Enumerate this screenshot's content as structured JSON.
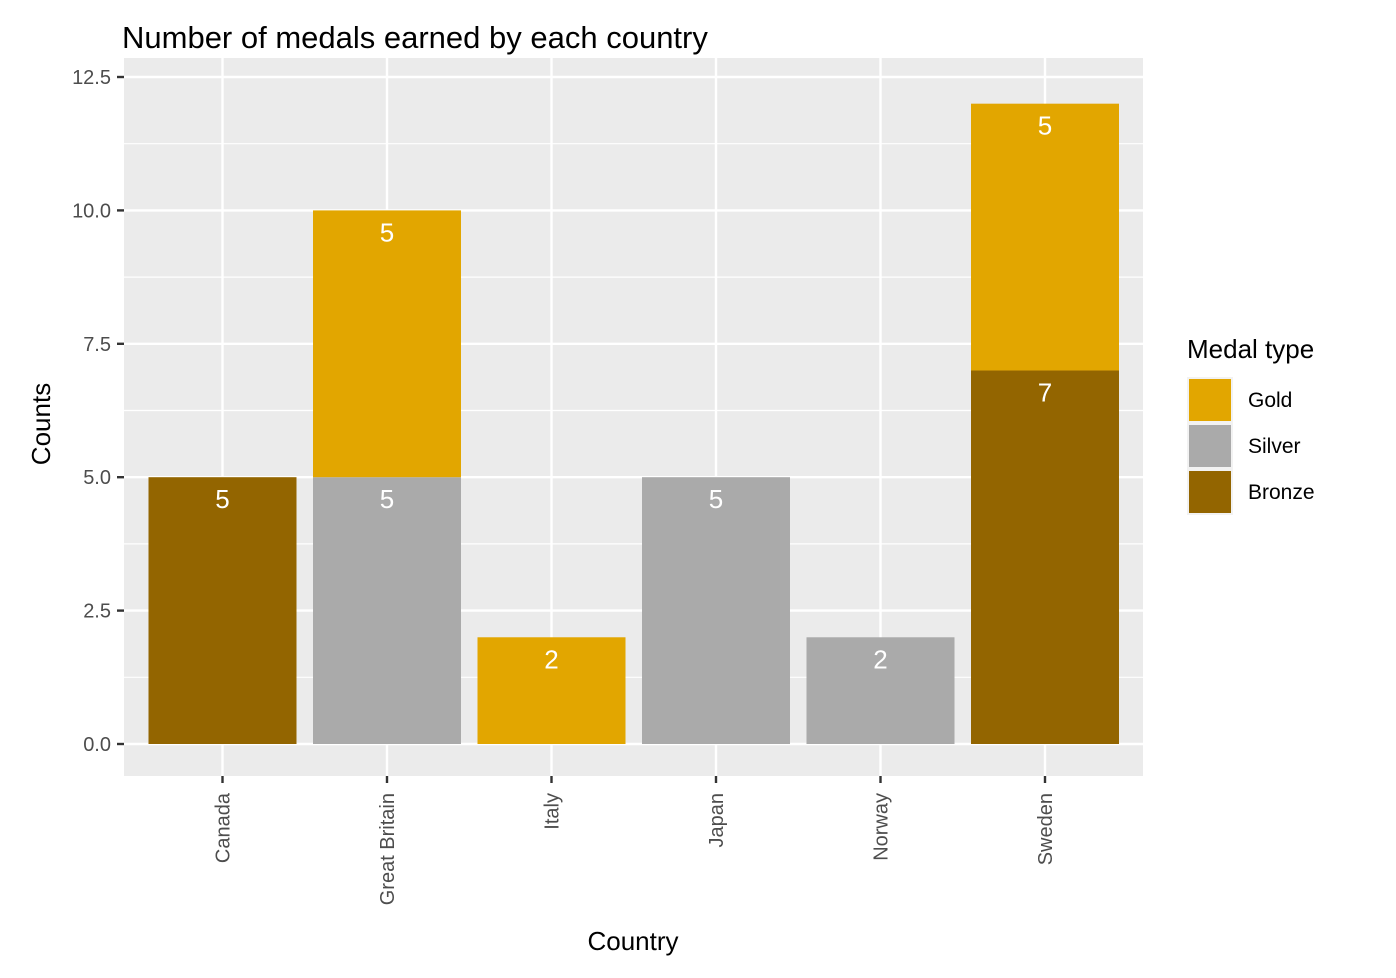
{
  "chart_data": {
    "type": "bar",
    "stacked": true,
    "title": "Number of medals earned by each country",
    "xlabel": "Country",
    "ylabel": "Counts",
    "ylim": [
      0,
      12.5
    ],
    "yticks": [
      "0.0",
      "2.5",
      "5.0",
      "7.5",
      "10.0",
      "12.5"
    ],
    "categories": [
      "Canada",
      "Great Britain",
      "Italy",
      "Japan",
      "Norway",
      "Sweden"
    ],
    "series": [
      {
        "name": "Bronze",
        "color": "#936500",
        "values": [
          5,
          0,
          0,
          0,
          0,
          7
        ]
      },
      {
        "name": "Silver",
        "color": "#aaaaaa",
        "values": [
          0,
          5,
          0,
          5,
          2,
          0
        ]
      },
      {
        "name": "Gold",
        "color": "#e2a600",
        "values": [
          0,
          5,
          2,
          0,
          0,
          5
        ]
      }
    ],
    "legend": {
      "title": "Medal type",
      "position": "right",
      "order": [
        "Gold",
        "Silver",
        "Bronze"
      ]
    },
    "panel_background": "#ebebeb",
    "grid": true
  }
}
